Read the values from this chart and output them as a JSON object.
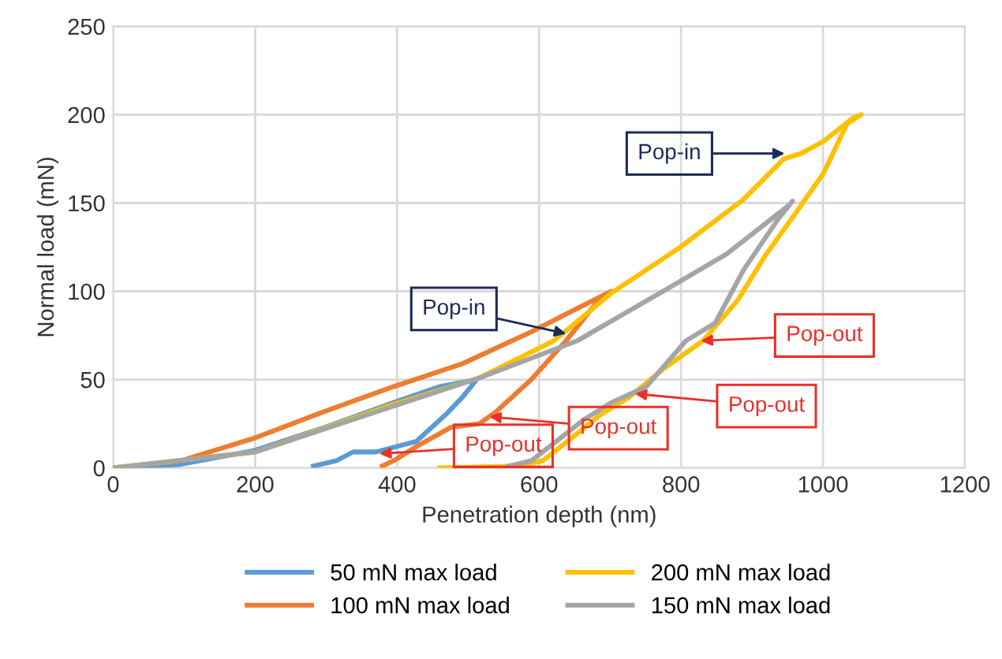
{
  "chart_data": {
    "type": "line",
    "xlabel": "Penetration depth (nm)",
    "ylabel": "Normal load (mN)",
    "xlim": [
      0,
      1200
    ],
    "xticks": [
      0,
      200,
      400,
      600,
      800,
      1000,
      1200
    ],
    "ylim": [
      0,
      250
    ],
    "yticks": [
      0,
      50,
      100,
      150,
      200,
      250
    ],
    "grid": true,
    "legend": "bottom",
    "marker": "none",
    "line_style": "solid",
    "series": [
      {
        "name": "50 mN max load",
        "color": "#5b9bd5",
        "x": [
          0,
          95,
          200,
          298,
          395,
          460,
          512,
          492,
          468,
          427,
          370,
          338,
          314,
          282
        ],
        "values": [
          0,
          2,
          10,
          23,
          37,
          46,
          50,
          40,
          30,
          15,
          9,
          9,
          4,
          1
        ]
      },
      {
        "name": "100 mN max load",
        "color": "#ed7d31",
        "x": [
          0,
          95,
          200,
          298,
          395,
          492,
          589,
          662,
          702,
          678,
          638,
          589,
          540,
          516,
          476,
          427,
          395,
          379
        ],
        "values": [
          0,
          4,
          17,
          32,
          46,
          59,
          77,
          92,
          100,
          92,
          72,
          50,
          32,
          25,
          23,
          12,
          4,
          1
        ]
      },
      {
        "name": "200 mN max load",
        "color": "#ffc000",
        "x": [
          0,
          200,
          395,
          516,
          621,
          702,
          799,
          888,
          945,
          969,
          1001,
          1042,
          1054,
          1034,
          1001,
          961,
          920,
          880,
          831,
          775,
          727,
          686,
          637,
          605,
          573,
          460
        ],
        "values": [
          0,
          9,
          36,
          51,
          72,
          99,
          125,
          152,
          175,
          178,
          185,
          198,
          200,
          195,
          167,
          144,
          121,
          95,
          72,
          56,
          40,
          30,
          14,
          4,
          1,
          0
        ]
      },
      {
        "name": "150 mN max load",
        "color": "#a5a5a5",
        "x": [
          0,
          200,
          395,
          516,
          654,
          783,
          864,
          953,
          957,
          937,
          888,
          848,
          807,
          751,
          702,
          662,
          621,
          589,
          557
        ],
        "values": [
          0,
          9,
          35,
          51,
          72,
          102,
          121,
          149,
          151,
          141,
          112,
          82,
          72,
          46,
          37,
          27,
          14,
          4,
          1
        ]
      }
    ],
    "annotations": [
      {
        "text": "Pop-in",
        "x": 946,
        "y": 178
      },
      {
        "text": "Pop-in",
        "x": 638,
        "y": 76
      },
      {
        "text": "Pop-out",
        "x": 828,
        "y": 72
      },
      {
        "text": "Pop-out",
        "x": 735,
        "y": 42
      },
      {
        "text": "Pop-out",
        "x": 530,
        "y": 29
      },
      {
        "text": "Pop-out",
        "x": 375,
        "y": 8
      }
    ]
  }
}
